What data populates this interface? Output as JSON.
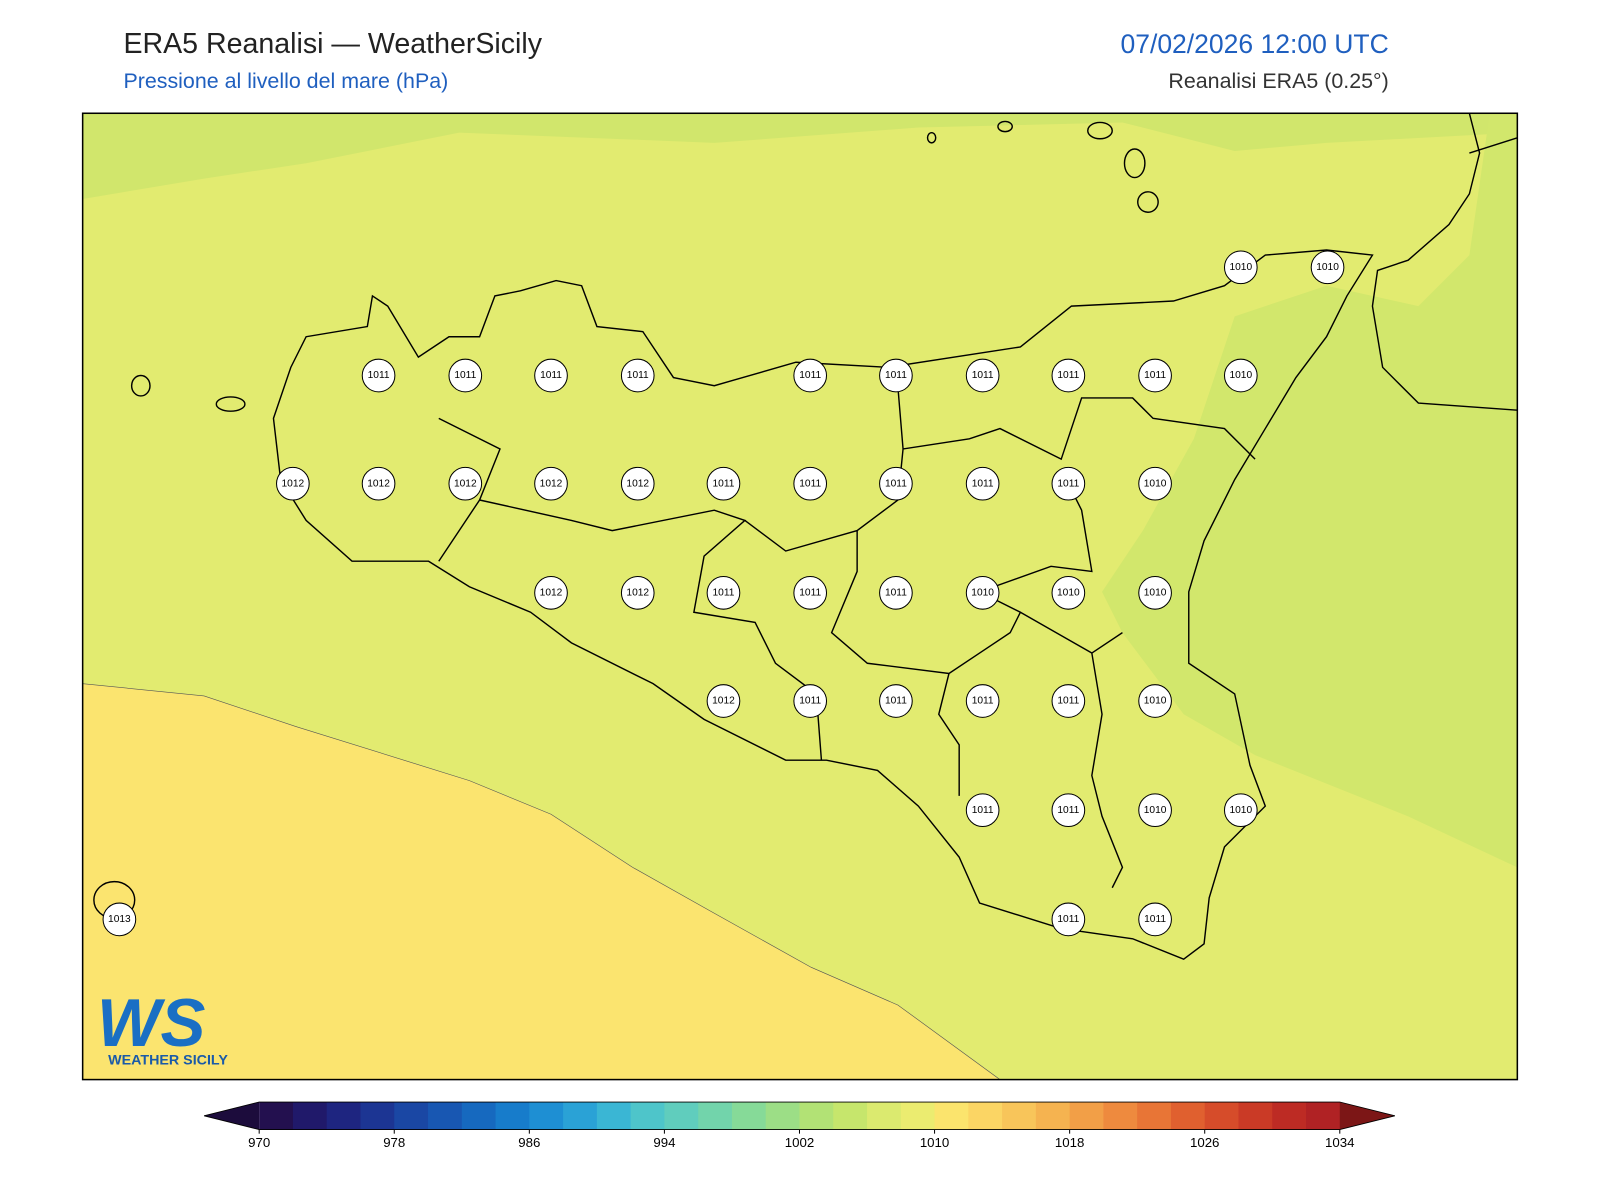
{
  "header": {
    "title": "ERA5 Reanalisi — WeatherSicily",
    "subtitle": "Pressione al livello del mare (hPa)",
    "datetime": "07/02/2026 12:00 UTC",
    "source": "Reanalisi ERA5 (0.25°)"
  },
  "map": {
    "station_labels": [
      1010,
      1010,
      1011,
      1011,
      1011,
      1011,
      1011,
      1011,
      1011,
      1011,
      1011,
      1010,
      1012,
      1012,
      1012,
      1012,
      1012,
      1011,
      1011,
      1011,
      1011,
      1011,
      1010,
      1012,
      1012,
      1011,
      1011,
      1011,
      1010,
      1010,
      1010,
      1012,
      1011,
      1011,
      1011,
      1011,
      1010,
      1011,
      1011,
      1010,
      1010,
      1013,
      1011,
      1011
    ]
  },
  "colorbar": {
    "ticks": [
      970,
      978,
      986,
      994,
      1002,
      1010,
      1018,
      1026,
      1034
    ]
  },
  "logo": {
    "mark": "WS",
    "text": "WEATHER SICILY"
  }
}
